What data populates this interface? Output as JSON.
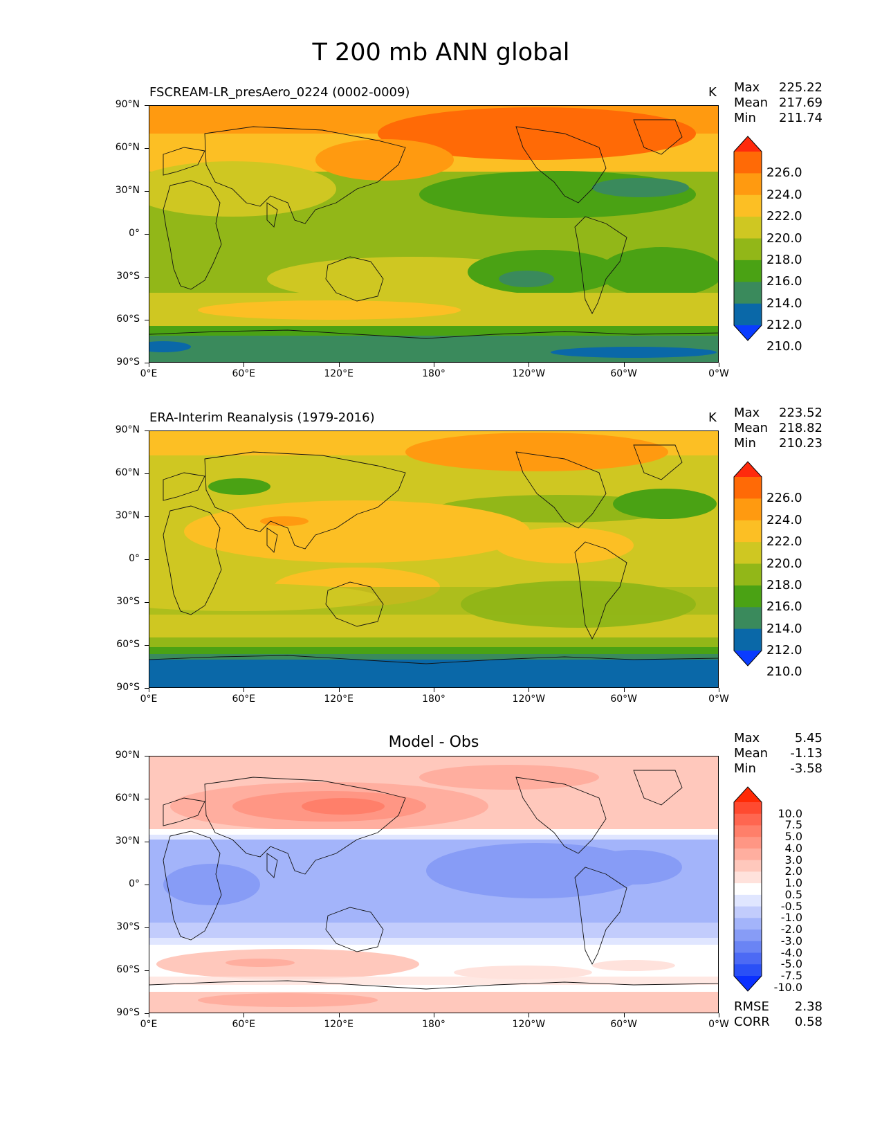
{
  "title": "T 200 mb ANN global",
  "x_ticks": [
    "0°E",
    "60°E",
    "120°E",
    "180°",
    "120°W",
    "60°W",
    "0°W"
  ],
  "y_ticks": [
    "90°N",
    "60°N",
    "30°N",
    "0°",
    "30°S",
    "60°S",
    "90°S"
  ],
  "panels": [
    {
      "id": "model",
      "title": "FSCREAM-LR_presAero_0224 (0002-0009)",
      "units": "K",
      "stats": [
        {
          "label": "Max",
          "value": "225.22"
        },
        {
          "label": "Mean",
          "value": "217.69"
        },
        {
          "label": "Min",
          "value": "211.74"
        }
      ],
      "colorbar": {
        "levels": [
          "226.0",
          "224.0",
          "222.0",
          "220.0",
          "218.0",
          "216.0",
          "214.0",
          "212.0",
          "210.0"
        ],
        "colors": [
          "#ff2a0c",
          "#ff6a06",
          "#ff9a10",
          "#fcbf24",
          "#cfc722",
          "#92b718",
          "#4aa214",
          "#3a8a5c",
          "#0a68a8",
          "#0a3cff"
        ]
      }
    },
    {
      "id": "obs",
      "title": "ERA-Interim Reanalysis (1979-2016)",
      "units": "K",
      "stats": [
        {
          "label": "Max",
          "value": "223.52"
        },
        {
          "label": "Mean",
          "value": "218.82"
        },
        {
          "label": "Min",
          "value": "210.23"
        }
      ],
      "colorbar": {
        "levels": [
          "226.0",
          "224.0",
          "222.0",
          "220.0",
          "218.0",
          "216.0",
          "214.0",
          "212.0",
          "210.0"
        ],
        "colors": [
          "#ff2a0c",
          "#ff6a06",
          "#ff9a10",
          "#fcbf24",
          "#cfc722",
          "#92b718",
          "#4aa214",
          "#3a8a5c",
          "#0a68a8",
          "#0a3cff"
        ]
      }
    },
    {
      "id": "diff",
      "title": "Model - Obs",
      "units": "",
      "stats": [
        {
          "label": "Max",
          "value": "5.45"
        },
        {
          "label": "Mean",
          "value": "-1.13"
        },
        {
          "label": "Min",
          "value": "-3.58"
        }
      ],
      "extra_stats": [
        {
          "label": "RMSE",
          "value": "2.38"
        },
        {
          "label": "CORR",
          "value": "0.58"
        }
      ],
      "colorbar": {
        "levels": [
          "10.0",
          "7.5",
          "5.0",
          "4.0",
          "3.0",
          "2.0",
          "1.0",
          "0.5",
          "-0.5",
          "-1.0",
          "-2.0",
          "-3.0",
          "-4.0",
          "-5.0",
          "-7.5",
          "-10.0"
        ],
        "colors": [
          "#ff2a05",
          "#ff4a30",
          "#ff6650",
          "#ff7f6a",
          "#ff9684",
          "#ffae9f",
          "#ffc8bc",
          "#ffe2dc",
          "#ffffff",
          "#e0e6ff",
          "#c2ccfc",
          "#a3b4fa",
          "#879cf6",
          "#6a84f4",
          "#4c6af4",
          "#2a50f6",
          "#0a30ff"
        ]
      }
    }
  ]
}
